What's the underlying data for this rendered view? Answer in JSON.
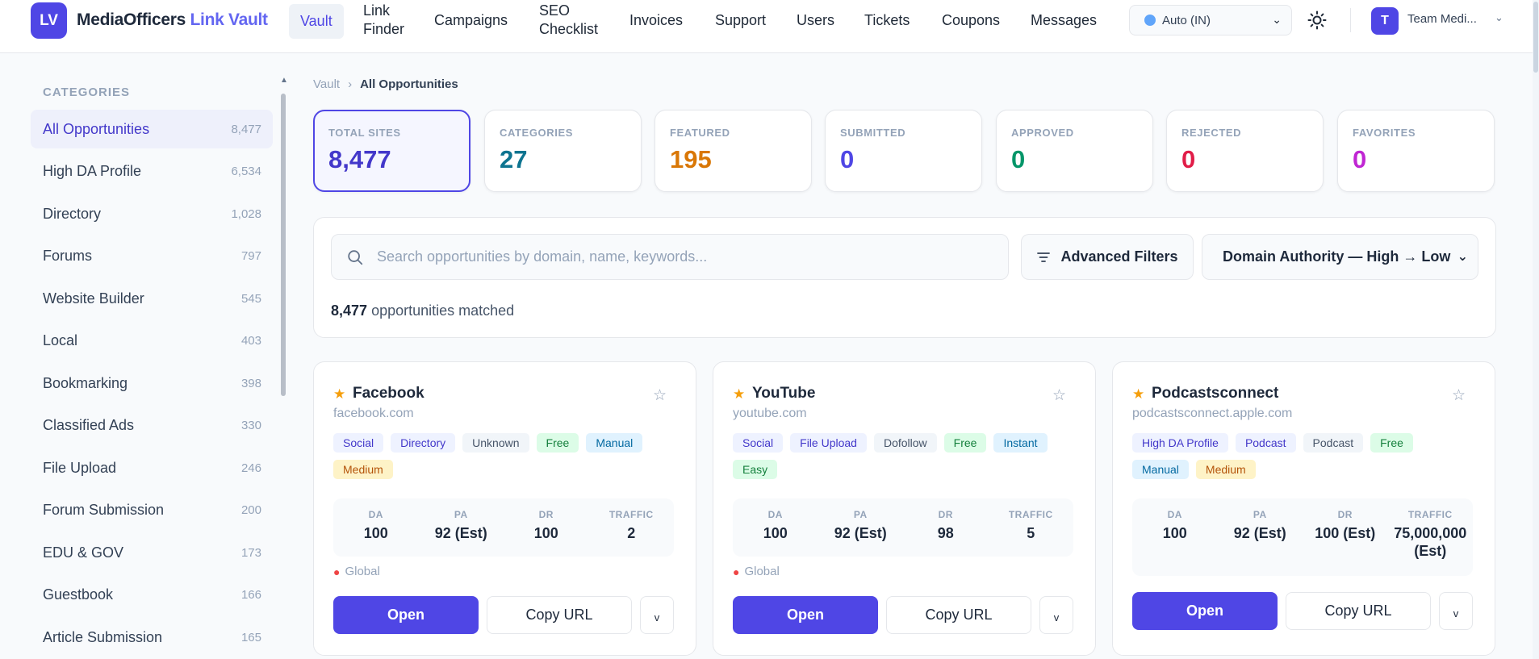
{
  "brand": {
    "logo": "LV",
    "name": "MediaOfficers",
    "name_accent": "Link Vault"
  },
  "nav": {
    "vault": "Vault",
    "link_finder_1": "Link",
    "link_finder_2": "Finder",
    "campaigns": "Campaigns",
    "seo_1": "SEO",
    "seo_2": "Checklist",
    "invoices": "Invoices",
    "support": "Support",
    "users": "Users",
    "tickets": "Tickets",
    "coupons": "Coupons",
    "messages": "Messages"
  },
  "region": "Auto (IN)",
  "user": {
    "initial": "T",
    "name": "Team Medi..."
  },
  "sidebar": {
    "heading": "CATEGORIES",
    "items": [
      {
        "label": "All Opportunities",
        "count": "8,477"
      },
      {
        "label": "High DA Profile",
        "count": "6,534"
      },
      {
        "label": "Directory",
        "count": "1,028"
      },
      {
        "label": "Forums",
        "count": "797"
      },
      {
        "label": "Website Builder",
        "count": "545"
      },
      {
        "label": "Local",
        "count": "403"
      },
      {
        "label": "Bookmarking",
        "count": "398"
      },
      {
        "label": "Classified Ads",
        "count": "330"
      },
      {
        "label": "File Upload",
        "count": "246"
      },
      {
        "label": "Forum Submission",
        "count": "200"
      },
      {
        "label": "EDU & GOV",
        "count": "173"
      },
      {
        "label": "Guestbook",
        "count": "166"
      },
      {
        "label": "Article Submission",
        "count": "165"
      }
    ]
  },
  "breadcrumb": {
    "root": "Vault",
    "current": "All Opportunities"
  },
  "stats": [
    {
      "label": "TOTAL SITES",
      "value": "8,477",
      "color": "#4338ca"
    },
    {
      "label": "CATEGORIES",
      "value": "27",
      "color": "#0e7490"
    },
    {
      "label": "FEATURED",
      "value": "195",
      "color": "#d97706"
    },
    {
      "label": "SUBMITTED",
      "value": "0",
      "color": "#4f46e5"
    },
    {
      "label": "APPROVED",
      "value": "0",
      "color": "#059669"
    },
    {
      "label": "REJECTED",
      "value": "0",
      "color": "#e11d48"
    },
    {
      "label": "FAVORITES",
      "value": "0",
      "color": "#c026d3"
    }
  ],
  "search": {
    "placeholder": "Search opportunities by domain, name, keywords...",
    "advanced_filters": "Advanced Filters",
    "sort": "Domain Authority — High → Low",
    "matched_count": "8,477",
    "matched_text": "opportunities matched"
  },
  "metric_labels": {
    "da": "DA",
    "pa": "PA",
    "dr": "DR",
    "traffic": "TRAFFIC"
  },
  "buttons": {
    "open": "Open",
    "copy": "Copy URL",
    "more": "v"
  },
  "cards": [
    {
      "title": "Facebook",
      "domain": "facebook.com",
      "tags": [
        "Social",
        "Directory",
        "Unknown",
        "Free",
        "Manual",
        "Medium"
      ],
      "da": "100",
      "pa": "92 (Est)",
      "dr": "100",
      "traffic": "2",
      "location": "Global"
    },
    {
      "title": "YouTube",
      "domain": "youtube.com",
      "tags": [
        "Social",
        "File Upload",
        "Dofollow",
        "Free",
        "Instant",
        "Easy"
      ],
      "da": "100",
      "pa": "92 (Est)",
      "dr": "98",
      "traffic": "5",
      "location": "Global"
    },
    {
      "title": "Podcastsconnect",
      "domain": "podcastsconnect.apple.com",
      "tags": [
        "High DA Profile",
        "Podcast",
        "Podcast",
        "Free",
        "Manual",
        "Medium"
      ],
      "da": "100",
      "pa": "92 (Est)",
      "dr": "100 (Est)",
      "traffic_1": "75,000,000",
      "traffic_2": "(Est)"
    }
  ],
  "colors": {
    "accent": "#4f46e5",
    "featured_star": "#f59e0b"
  }
}
